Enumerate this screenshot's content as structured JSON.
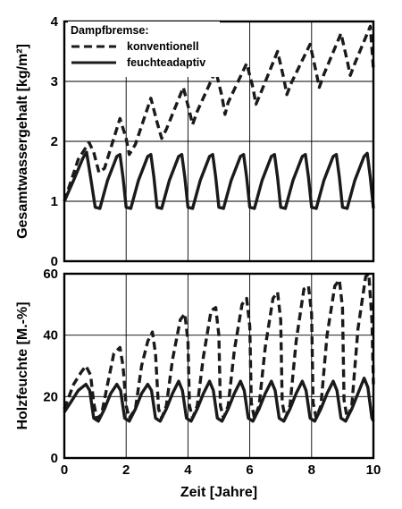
{
  "chart_data": [
    {
      "type": "line",
      "ylabel": "Gesamtwassergehalt [kg/m²]",
      "ylim": [
        0,
        4
      ],
      "yticks": [
        "0",
        "1",
        "2",
        "3",
        "4"
      ],
      "xlim": [
        0,
        10
      ],
      "grid": true,
      "legend": {
        "title": "Dampfbremse:",
        "placement": "top-left",
        "entries": [
          {
            "label": "konventionell",
            "style": "dashed"
          },
          {
            "label": "feuchteadaptiv",
            "style": "solid"
          }
        ]
      },
      "series": [
        {
          "name": "konventionell",
          "style": "dashed",
          "points": [
            [
              0,
              1.0
            ],
            [
              0.45,
              1.7
            ],
            [
              0.8,
              1.98
            ],
            [
              0.95,
              1.82
            ],
            [
              1.12,
              1.48
            ],
            [
              1.3,
              1.55
            ],
            [
              1.8,
              2.38
            ],
            [
              2.0,
              2.05
            ],
            [
              2.1,
              1.78
            ],
            [
              2.3,
              1.95
            ],
            [
              2.8,
              2.72
            ],
            [
              3.0,
              2.32
            ],
            [
              3.15,
              2.05
            ],
            [
              3.3,
              2.2
            ],
            [
              3.85,
              2.9
            ],
            [
              4.05,
              2.5
            ],
            [
              4.15,
              2.28
            ],
            [
              4.3,
              2.5
            ],
            [
              4.9,
              3.18
            ],
            [
              5.1,
              2.75
            ],
            [
              5.2,
              2.45
            ],
            [
              5.3,
              2.65
            ],
            [
              5.9,
              3.3
            ],
            [
              6.1,
              2.9
            ],
            [
              6.2,
              2.62
            ],
            [
              6.35,
              2.8
            ],
            [
              6.9,
              3.5
            ],
            [
              7.1,
              3.05
            ],
            [
              7.2,
              2.78
            ],
            [
              7.35,
              2.98
            ],
            [
              7.95,
              3.62
            ],
            [
              8.15,
              3.15
            ],
            [
              8.25,
              2.9
            ],
            [
              8.4,
              3.12
            ],
            [
              8.95,
              3.8
            ],
            [
              9.15,
              3.35
            ],
            [
              9.25,
              3.1
            ],
            [
              9.4,
              3.3
            ],
            [
              9.9,
              3.92
            ],
            [
              10.0,
              3.2
            ]
          ]
        },
        {
          "name": "feuchteadaptiv",
          "style": "solid",
          "points": [
            [
              0,
              1.0
            ],
            [
              0.3,
              1.35
            ],
            [
              0.6,
              1.72
            ],
            [
              0.72,
              1.82
            ],
            [
              0.85,
              1.4
            ],
            [
              1.0,
              0.9
            ],
            [
              1.15,
              0.88
            ],
            [
              1.4,
              1.35
            ],
            [
              1.7,
              1.75
            ],
            [
              1.8,
              1.78
            ],
            [
              1.9,
              1.4
            ],
            [
              2.0,
              0.9
            ],
            [
              2.15,
              0.88
            ],
            [
              2.4,
              1.35
            ],
            [
              2.7,
              1.75
            ],
            [
              2.8,
              1.78
            ],
            [
              2.9,
              1.4
            ],
            [
              3.0,
              0.9
            ],
            [
              3.15,
              0.88
            ],
            [
              3.4,
              1.35
            ],
            [
              3.7,
              1.75
            ],
            [
              3.8,
              1.78
            ],
            [
              3.9,
              1.4
            ],
            [
              4.0,
              0.9
            ],
            [
              4.15,
              0.88
            ],
            [
              4.4,
              1.35
            ],
            [
              4.7,
              1.75
            ],
            [
              4.8,
              1.78
            ],
            [
              4.9,
              1.4
            ],
            [
              5.0,
              0.9
            ],
            [
              5.15,
              0.88
            ],
            [
              5.4,
              1.35
            ],
            [
              5.7,
              1.75
            ],
            [
              5.8,
              1.78
            ],
            [
              5.9,
              1.4
            ],
            [
              6.0,
              0.9
            ],
            [
              6.15,
              0.88
            ],
            [
              6.4,
              1.35
            ],
            [
              6.7,
              1.75
            ],
            [
              6.8,
              1.78
            ],
            [
              6.9,
              1.4
            ],
            [
              7.0,
              0.9
            ],
            [
              7.15,
              0.88
            ],
            [
              7.4,
              1.35
            ],
            [
              7.7,
              1.75
            ],
            [
              7.8,
              1.78
            ],
            [
              7.9,
              1.4
            ],
            [
              8.0,
              0.9
            ],
            [
              8.15,
              0.88
            ],
            [
              8.4,
              1.35
            ],
            [
              8.7,
              1.75
            ],
            [
              8.8,
              1.78
            ],
            [
              8.9,
              1.4
            ],
            [
              9.0,
              0.9
            ],
            [
              9.15,
              0.88
            ],
            [
              9.4,
              1.35
            ],
            [
              9.7,
              1.75
            ],
            [
              9.8,
              1.8
            ],
            [
              9.9,
              1.4
            ],
            [
              10.0,
              0.88
            ]
          ]
        }
      ]
    },
    {
      "type": "line",
      "xlabel": "Zeit [Jahre]",
      "ylabel": "Holzfeuchte [M.-%]",
      "xlim": [
        0,
        10
      ],
      "ylim": [
        0,
        60
      ],
      "xticks": [
        "0",
        "2",
        "4",
        "6",
        "8",
        "10"
      ],
      "yticks": [
        "0",
        "20",
        "40",
        "60"
      ],
      "grid": true,
      "series": [
        {
          "name": "konventionell",
          "style": "dashed",
          "points": [
            [
              0,
              16
            ],
            [
              0.3,
              24
            ],
            [
              0.55,
              28
            ],
            [
              0.7,
              30
            ],
            [
              0.85,
              27
            ],
            [
              0.95,
              18
            ],
            [
              1.05,
              13
            ],
            [
              1.2,
              14
            ],
            [
              1.4,
              24
            ],
            [
              1.6,
              34
            ],
            [
              1.8,
              36
            ],
            [
              1.9,
              30
            ],
            [
              2.0,
              17
            ],
            [
              2.1,
              13
            ],
            [
              2.3,
              16
            ],
            [
              2.5,
              30
            ],
            [
              2.7,
              38
            ],
            [
              2.85,
              41
            ],
            [
              2.95,
              34
            ],
            [
              3.05,
              16
            ],
            [
              3.15,
              13
            ],
            [
              3.3,
              17
            ],
            [
              3.5,
              32
            ],
            [
              3.75,
              45
            ],
            [
              3.9,
              47
            ],
            [
              4.0,
              38
            ],
            [
              4.05,
              17
            ],
            [
              4.15,
              13
            ],
            [
              4.3,
              17
            ],
            [
              4.5,
              33
            ],
            [
              4.75,
              48
            ],
            [
              4.9,
              49
            ],
            [
              5.0,
              40
            ],
            [
              5.05,
              17
            ],
            [
              5.15,
              13
            ],
            [
              5.3,
              17
            ],
            [
              5.5,
              35
            ],
            [
              5.75,
              50
            ],
            [
              5.9,
              52
            ],
            [
              6.0,
              43
            ],
            [
              6.05,
              18
            ],
            [
              6.15,
              13
            ],
            [
              6.3,
              17
            ],
            [
              6.5,
              36
            ],
            [
              6.75,
              52
            ],
            [
              6.9,
              54
            ],
            [
              7.0,
              45
            ],
            [
              7.05,
              18
            ],
            [
              7.15,
              13
            ],
            [
              7.3,
              17
            ],
            [
              7.5,
              38
            ],
            [
              7.75,
              55
            ],
            [
              7.9,
              56
            ],
            [
              8.0,
              47
            ],
            [
              8.05,
              18
            ],
            [
              8.15,
              13
            ],
            [
              8.3,
              17
            ],
            [
              8.5,
              40
            ],
            [
              8.75,
              56
            ],
            [
              8.9,
              58
            ],
            [
              9.0,
              49
            ],
            [
              9.05,
              19
            ],
            [
              9.15,
              13
            ],
            [
              9.3,
              17
            ],
            [
              9.5,
              42
            ],
            [
              9.75,
              59
            ],
            [
              9.85,
              60
            ],
            [
              9.95,
              45
            ],
            [
              10.0,
              24
            ]
          ]
        },
        {
          "name": "feuchteadaptiv",
          "style": "solid",
          "points": [
            [
              0,
              15
            ],
            [
              0.2,
              18
            ],
            [
              0.45,
              22
            ],
            [
              0.7,
              24
            ],
            [
              0.82,
              22
            ],
            [
              0.95,
              13
            ],
            [
              1.1,
              12
            ],
            [
              1.3,
              16
            ],
            [
              1.5,
              21
            ],
            [
              1.7,
              24
            ],
            [
              1.82,
              22
            ],
            [
              1.95,
              13
            ],
            [
              2.1,
              12
            ],
            [
              2.3,
              16
            ],
            [
              2.5,
              21
            ],
            [
              2.7,
              24
            ],
            [
              2.82,
              22
            ],
            [
              2.95,
              13
            ],
            [
              3.1,
              12
            ],
            [
              3.3,
              16
            ],
            [
              3.5,
              21
            ],
            [
              3.7,
              25
            ],
            [
              3.82,
              22
            ],
            [
              3.95,
              13
            ],
            [
              4.1,
              12
            ],
            [
              4.3,
              16
            ],
            [
              4.5,
              21
            ],
            [
              4.7,
              25
            ],
            [
              4.82,
              22
            ],
            [
              4.95,
              13
            ],
            [
              5.1,
              12
            ],
            [
              5.3,
              16
            ],
            [
              5.5,
              21
            ],
            [
              5.7,
              25
            ],
            [
              5.82,
              22
            ],
            [
              5.95,
              13
            ],
            [
              6.1,
              12
            ],
            [
              6.3,
              16
            ],
            [
              6.5,
              21
            ],
            [
              6.7,
              25
            ],
            [
              6.82,
              22
            ],
            [
              6.95,
              13
            ],
            [
              7.1,
              12
            ],
            [
              7.3,
              16
            ],
            [
              7.5,
              21
            ],
            [
              7.7,
              25
            ],
            [
              7.82,
              22
            ],
            [
              7.95,
              13
            ],
            [
              8.1,
              12
            ],
            [
              8.3,
              16
            ],
            [
              8.5,
              21
            ],
            [
              8.7,
              25
            ],
            [
              8.82,
              22
            ],
            [
              8.95,
              13
            ],
            [
              9.1,
              12
            ],
            [
              9.3,
              16
            ],
            [
              9.5,
              21
            ],
            [
              9.7,
              26
            ],
            [
              9.82,
              23
            ],
            [
              9.95,
              13
            ],
            [
              10.0,
              12
            ]
          ]
        }
      ]
    }
  ]
}
